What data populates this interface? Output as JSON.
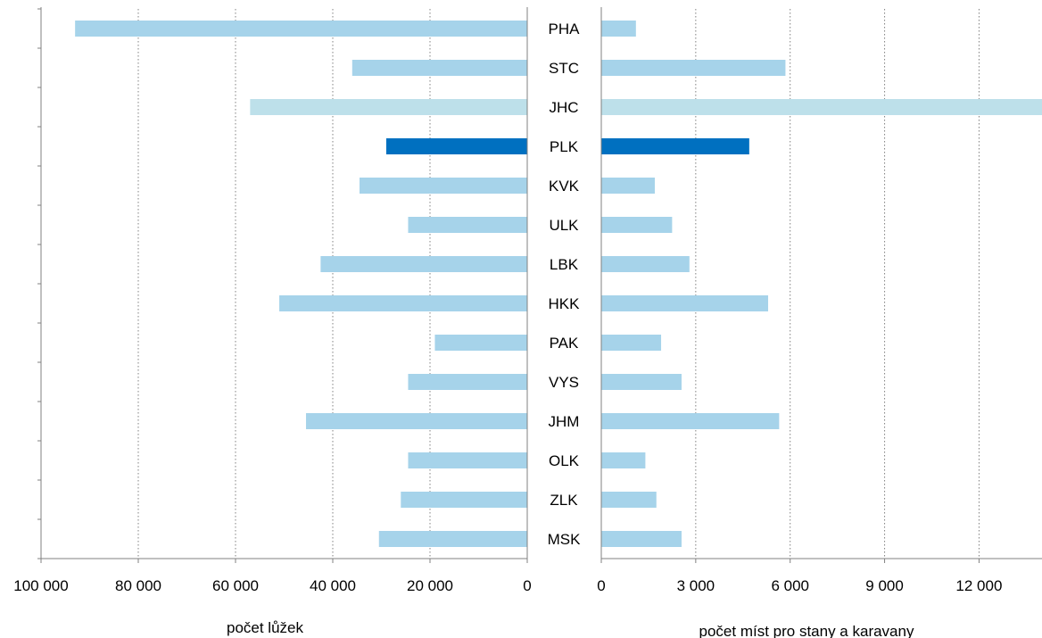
{
  "chart_data": [
    {
      "type": "bar",
      "orientation": "horizontal",
      "direction": "reversed",
      "xlabel": "počet lůžek",
      "xlim": [
        0,
        100000
      ],
      "xticks": [
        100000,
        80000,
        60000,
        40000,
        20000,
        0
      ],
      "xtick_labels": [
        "100 000",
        "80 000",
        "60 000",
        "40 000",
        "20 000",
        "0"
      ],
      "grid": "vertical dotted",
      "categories": [
        "PHA",
        "STC",
        "JHC",
        "PLK",
        "KVK",
        "ULK",
        "LBK",
        "HKK",
        "PAK",
        "VYS",
        "JHM",
        "OLK",
        "ZLK",
        "MSK"
      ],
      "values": [
        93000,
        36000,
        57000,
        29000,
        34500,
        24500,
        42500,
        51000,
        19000,
        24500,
        45500,
        24500,
        26000,
        30500
      ]
    },
    {
      "type": "bar",
      "orientation": "horizontal",
      "xlabel": "počet míst pro stany a karavany",
      "xlim": [
        0,
        14000
      ],
      "xticks": [
        0,
        3000,
        6000,
        9000,
        12000
      ],
      "xtick_labels": [
        "0",
        "3 000",
        "6 000",
        "9 000",
        "12 000"
      ],
      "grid": "vertical dotted",
      "categories": [
        "PHA",
        "STC",
        "JHC",
        "PLK",
        "KVK",
        "ULK",
        "LBK",
        "HKK",
        "PAK",
        "VYS",
        "JHM",
        "OLK",
        "ZLK",
        "MSK"
      ],
      "values": [
        1100,
        5850,
        14000,
        4700,
        1700,
        2250,
        2800,
        5300,
        1900,
        2550,
        5650,
        1400,
        1750,
        2550
      ]
    }
  ],
  "colors": {
    "default": "#a6d3ea",
    "highlight": "#0070c0",
    "light": "#bde0ea",
    "grid": "#808080",
    "axis": "#808080"
  },
  "highlight_category": "PLK",
  "light_category": "JHC"
}
